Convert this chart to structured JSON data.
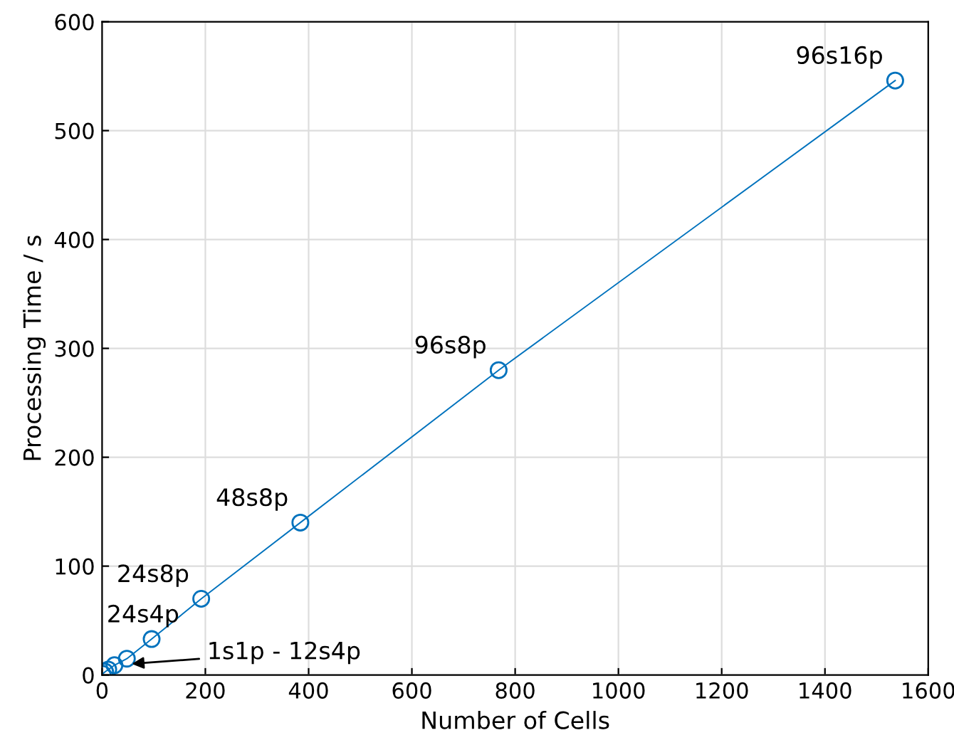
{
  "chart_data": {
    "type": "line",
    "xlabel": "Number of Cells",
    "ylabel": "Processing Time / s",
    "x": [
      1,
      6,
      12,
      24,
      48,
      96,
      192,
      384,
      768,
      1536
    ],
    "series": [
      {
        "color": "#0072bd",
        "values": [
          1,
          3,
          5,
          9,
          15,
          33,
          70,
          140,
          280,
          546
        ]
      }
    ],
    "xlim": [
      0,
      1600
    ],
    "xticks": [
      0,
      200,
      400,
      600,
      800,
      1000,
      1200,
      1400,
      1600
    ],
    "ylim": [
      0,
      600
    ],
    "yticks": [
      0,
      100,
      200,
      300,
      400,
      500,
      600
    ],
    "grid": true,
    "marker": "circle",
    "line_style": "solid",
    "annotations": [
      {
        "text": "24s4p",
        "x": 96,
        "y": 33
      },
      {
        "text": "24s8p",
        "x": 192,
        "y": 70
      },
      {
        "text": "48s8p",
        "x": 384,
        "y": 140
      },
      {
        "text": "96s8p",
        "x": 768,
        "y": 280
      },
      {
        "text": "96s16p",
        "x": 1536,
        "y": 546
      },
      {
        "text": "1s1p - 12s4p",
        "x": 50,
        "y": 10
      }
    ]
  }
}
